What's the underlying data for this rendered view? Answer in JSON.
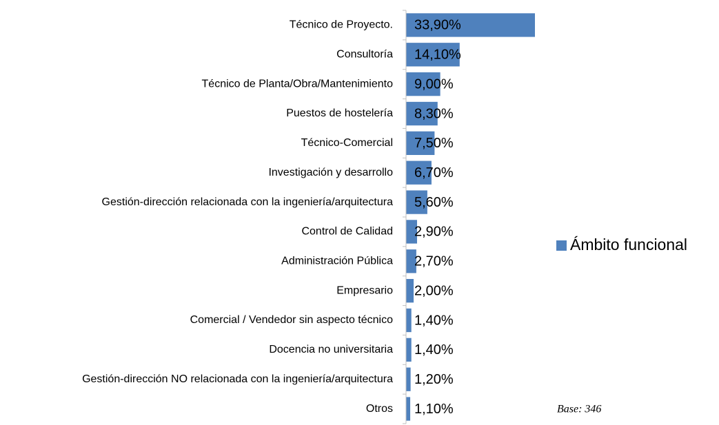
{
  "chart_data": {
    "type": "bar",
    "orientation": "horizontal",
    "categories": [
      "Técnico de Proyecto.",
      "Consultoría",
      "Técnico de Planta/Obra/Mantenimiento",
      "Puestos de hostelería",
      "Técnico-Comercial",
      "Investigación y desarrollo",
      "Gestión-dirección relacionada con la ingeniería/arquitectura",
      "Control de Calidad",
      "Administración Pública",
      "Empresario",
      "Comercial / Vendedor sin aspecto técnico",
      "Docencia no universitaria",
      "Gestión-dirección NO relacionada con la ingeniería/arquitectura",
      "Otros"
    ],
    "series": [
      {
        "name": "Ámbito funcional",
        "color": "#4f81bd",
        "values": [
          33.9,
          14.1,
          9.0,
          8.3,
          7.5,
          6.7,
          5.6,
          2.9,
          2.7,
          2.0,
          1.4,
          1.4,
          1.2,
          1.1
        ],
        "value_labels": [
          "33,90%",
          "14,10%",
          "9,00%",
          "8,30%",
          "7,50%",
          "6,70%",
          "5,60%",
          "2,90%",
          "2,70%",
          "2,00%",
          "1,40%",
          "1,40%",
          "1,20%",
          "1,10%"
        ]
      }
    ],
    "legend": "right",
    "annotation": "Base: 346"
  }
}
